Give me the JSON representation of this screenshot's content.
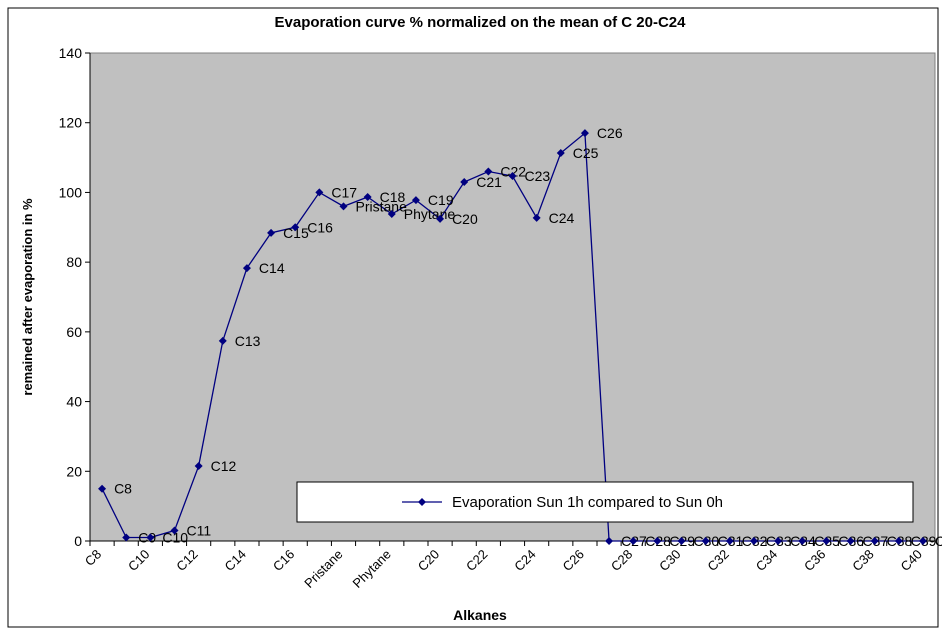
{
  "chart_data": {
    "type": "line",
    "title": "Evaporation curve % normalized on the mean of C 20-C24",
    "x_label": "Alkanes",
    "y_label": "remained after evaporation in %",
    "categories": [
      "C8",
      "C9",
      "C10",
      "C11",
      "C12",
      "C13",
      "C14",
      "C15",
      "C16",
      "C17",
      "Pristane",
      "C18",
      "Phytane",
      "C19",
      "C20",
      "C21",
      "C22",
      "C23",
      "C24",
      "C25",
      "C26",
      "C27",
      "C28",
      "C29",
      "C30",
      "C31",
      "C32",
      "C33",
      "C34",
      "C35",
      "C36",
      "C37",
      "C38",
      "C39",
      "C40"
    ],
    "series": [
      {
        "name": "Evaporation Sun 1h compared to Sun 0h",
        "color": "#000080",
        "values": [
          15,
          1,
          1,
          3,
          21.5,
          57.4,
          78.3,
          88.4,
          90,
          100,
          96,
          98.7,
          93.8,
          97.8,
          92.4,
          103,
          106,
          104.7,
          92.7,
          111.3,
          117,
          0,
          0,
          0,
          0,
          0,
          0,
          0,
          0,
          0,
          0,
          0,
          0,
          0,
          0
        ]
      }
    ],
    "ylim": [
      0,
      140
    ],
    "yticks": [
      0,
      20,
      40,
      60,
      80,
      100,
      120,
      140
    ],
    "grid": false,
    "legend": "lower right"
  }
}
